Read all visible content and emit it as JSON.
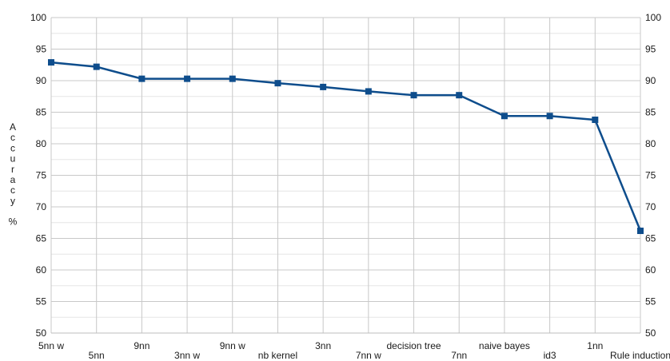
{
  "chart_data": {
    "type": "line",
    "title": "",
    "xlabel": "",
    "ylabel": "Accuracy %",
    "ylabel_chars": [
      "A",
      "c",
      "c",
      "u",
      "r",
      "a",
      "c",
      "y",
      "%"
    ],
    "ylim": [
      50,
      100
    ],
    "ytick_step": 5,
    "ytick_labels": [
      "50",
      "55",
      "60",
      "65",
      "70",
      "75",
      "80",
      "85",
      "90",
      "95",
      "100"
    ],
    "secondary_y_axis": true,
    "grid": true,
    "legend": "none",
    "categories": [
      "5nn w",
      "5nn",
      "9nn",
      "3nn w",
      "9nn w",
      "nb kernel",
      "3nn",
      "7nn w",
      "decision tree",
      "7nn",
      "naive bayes",
      "id3",
      "1nn",
      "Rule induction"
    ],
    "series": [
      {
        "name": "",
        "color": "#0e4d8c",
        "marker": "square",
        "values": [
          92.9,
          92.2,
          90.3,
          90.3,
          90.3,
          89.6,
          89.0,
          88.3,
          87.7,
          87.7,
          84.4,
          84.4,
          83.8,
          66.2
        ]
      }
    ]
  }
}
